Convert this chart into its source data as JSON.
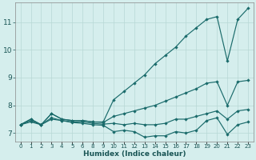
{
  "xlabel": "Humidex (Indice chaleur)",
  "background_color": "#d5eeed",
  "grid_color": "#b8d8d5",
  "line_color": "#1a6b6b",
  "xtick_labels": [
    "0",
    "1",
    "2",
    "3",
    "4",
    "5",
    "6",
    "8",
    "9",
    "10",
    "11",
    "12",
    "13",
    "14",
    "15",
    "16",
    "17",
    "18",
    "19",
    "20",
    "21",
    "22",
    "23"
  ],
  "line_max": [
    7.3,
    7.5,
    7.3,
    7.7,
    7.5,
    7.45,
    7.45,
    7.4,
    7.4,
    8.2,
    8.5,
    8.8,
    9.1,
    9.5,
    9.8,
    10.1,
    10.5,
    10.8,
    11.1,
    11.2,
    9.6,
    11.1,
    11.5
  ],
  "line_upper": [
    7.3,
    7.5,
    7.3,
    7.7,
    7.5,
    7.45,
    7.45,
    7.4,
    7.38,
    7.6,
    7.7,
    7.8,
    7.9,
    8.0,
    8.15,
    8.3,
    8.45,
    8.6,
    8.8,
    8.85,
    8.0,
    8.85,
    8.9
  ],
  "line_mean": [
    7.3,
    7.45,
    7.3,
    7.55,
    7.45,
    7.4,
    7.4,
    7.35,
    7.32,
    7.35,
    7.3,
    7.35,
    7.3,
    7.3,
    7.35,
    7.5,
    7.5,
    7.6,
    7.7,
    7.8,
    7.5,
    7.8,
    7.85
  ],
  "line_min": [
    7.3,
    7.4,
    7.3,
    7.5,
    7.45,
    7.38,
    7.35,
    7.3,
    7.28,
    7.05,
    7.1,
    7.05,
    6.85,
    6.9,
    6.9,
    7.05,
    7.0,
    7.1,
    7.45,
    7.55,
    6.95,
    7.3,
    7.4
  ],
  "ylim": [
    6.7,
    11.7
  ],
  "yticks": [
    7,
    8,
    9,
    10,
    11
  ],
  "figsize": [
    3.2,
    2.0
  ],
  "dpi": 100
}
